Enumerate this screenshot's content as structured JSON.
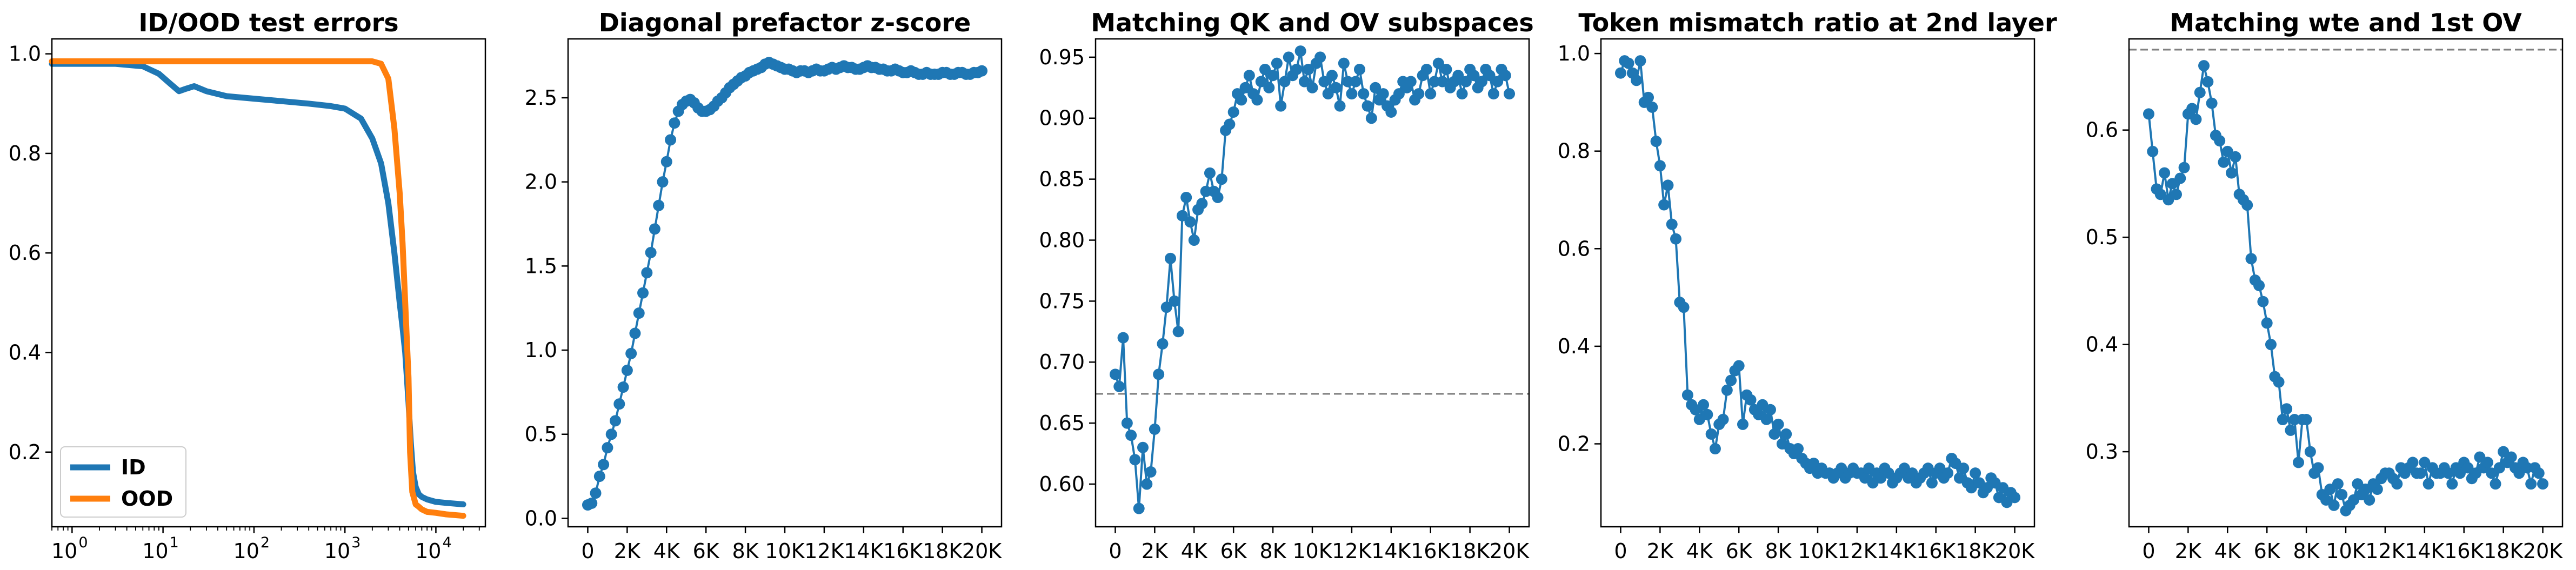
{
  "chart_data": [
    {
      "type": "line",
      "title": "ID/OOD test errors",
      "xscale": "log",
      "xlim": [
        0.6,
        35000
      ],
      "ylim": [
        0.05,
        1.03
      ],
      "xticks": [
        {
          "value": 1,
          "label": "10",
          "exp": "0"
        },
        {
          "value": 10,
          "label": "10",
          "exp": "1"
        },
        {
          "value": 100,
          "label": "10",
          "exp": "2"
        },
        {
          "value": 1000,
          "label": "10",
          "exp": "3"
        },
        {
          "value": 10000,
          "label": "10",
          "exp": "4"
        }
      ],
      "yticks": [
        {
          "value": 0.2,
          "label": "0.2"
        },
        {
          "value": 0.4,
          "label": "0.4"
        },
        {
          "value": 0.6,
          "label": "0.6"
        },
        {
          "value": 0.8,
          "label": "0.8"
        },
        {
          "value": 1.0,
          "label": "1.0"
        }
      ],
      "legend": {
        "position": "lower-left",
        "entries": [
          "ID",
          "OOD"
        ]
      },
      "series": [
        {
          "name": "ID",
          "color": "#1f77b4",
          "x": [
            0.6,
            1,
            3,
            6,
            9,
            12,
            15,
            18,
            22,
            30,
            50,
            100,
            200,
            400,
            700,
            1000,
            1500,
            2000,
            2500,
            3000,
            3500,
            4000,
            4300,
            4600,
            5000,
            5300,
            5600,
            6000,
            6500,
            7000,
            8000,
            10000,
            13000,
            20000
          ],
          "y": [
            0.98,
            0.98,
            0.98,
            0.975,
            0.96,
            0.94,
            0.925,
            0.93,
            0.935,
            0.925,
            0.915,
            0.91,
            0.905,
            0.9,
            0.895,
            0.89,
            0.87,
            0.83,
            0.78,
            0.7,
            0.6,
            0.5,
            0.45,
            0.4,
            0.3,
            0.22,
            0.16,
            0.13,
            0.115,
            0.11,
            0.105,
            0.1,
            0.098,
            0.095
          ]
        },
        {
          "name": "OOD",
          "color": "#ff7f0e",
          "x": [
            0.6,
            1,
            10,
            100,
            1000,
            2000,
            2500,
            3000,
            3500,
            4000,
            4300,
            4600,
            5000,
            5200,
            5500,
            6000,
            6500,
            7000,
            8000,
            10000,
            13000,
            20000
          ],
          "y": [
            0.985,
            0.985,
            0.985,
            0.985,
            0.985,
            0.985,
            0.98,
            0.95,
            0.85,
            0.72,
            0.62,
            0.5,
            0.35,
            0.2,
            0.12,
            0.095,
            0.09,
            0.085,
            0.08,
            0.078,
            0.075,
            0.072
          ]
        }
      ]
    },
    {
      "type": "scatter-line",
      "title": "Diagonal prefactor z-score",
      "xlim": [
        -1000,
        21000
      ],
      "ylim": [
        -0.05,
        2.85
      ],
      "xticks": [
        {
          "value": 0,
          "label": "0"
        },
        {
          "value": 2000,
          "label": "2K"
        },
        {
          "value": 4000,
          "label": "4K"
        },
        {
          "value": 6000,
          "label": "6K"
        },
        {
          "value": 8000,
          "label": "8K"
        },
        {
          "value": 10000,
          "label": "10K"
        },
        {
          "value": 12000,
          "label": "12K"
        },
        {
          "value": 14000,
          "label": "14K"
        },
        {
          "value": 16000,
          "label": "16K"
        },
        {
          "value": 18000,
          "label": "18K"
        },
        {
          "value": 20000,
          "label": "20K"
        }
      ],
      "yticks": [
        {
          "value": 0.0,
          "label": "0.0"
        },
        {
          "value": 0.5,
          "label": "0.5"
        },
        {
          "value": 1.0,
          "label": "1.0"
        },
        {
          "value": 1.5,
          "label": "1.5"
        },
        {
          "value": 2.0,
          "label": "2.0"
        },
        {
          "value": 2.5,
          "label": "2.5"
        }
      ],
      "series": [
        {
          "color": "#1f77b4",
          "markers": true,
          "x_start": 0,
          "x_step": 200,
          "y": [
            0.08,
            0.09,
            0.15,
            0.25,
            0.32,
            0.42,
            0.5,
            0.58,
            0.68,
            0.78,
            0.88,
            0.98,
            1.1,
            1.22,
            1.34,
            1.46,
            1.58,
            1.72,
            1.86,
            2.0,
            2.12,
            2.25,
            2.35,
            2.42,
            2.46,
            2.48,
            2.49,
            2.47,
            2.44,
            2.42,
            2.42,
            2.43,
            2.45,
            2.48,
            2.5,
            2.53,
            2.56,
            2.58,
            2.6,
            2.62,
            2.63,
            2.65,
            2.66,
            2.67,
            2.68,
            2.7,
            2.71,
            2.7,
            2.69,
            2.68,
            2.67,
            2.67,
            2.66,
            2.65,
            2.66,
            2.66,
            2.65,
            2.66,
            2.67,
            2.66,
            2.66,
            2.67,
            2.68,
            2.67,
            2.68,
            2.69,
            2.68,
            2.68,
            2.67,
            2.67,
            2.68,
            2.69,
            2.68,
            2.68,
            2.67,
            2.67,
            2.66,
            2.66,
            2.67,
            2.66,
            2.65,
            2.65,
            2.66,
            2.65,
            2.64,
            2.64,
            2.65,
            2.64,
            2.64,
            2.64,
            2.65,
            2.65,
            2.64,
            2.64,
            2.65,
            2.65,
            2.64,
            2.64,
            2.65,
            2.65,
            2.66
          ]
        }
      ]
    },
    {
      "type": "scatter-line",
      "title": "Matching QK and OV subspaces",
      "xlim": [
        -1000,
        21000
      ],
      "ylim": [
        0.565,
        0.965
      ],
      "xticks": [
        {
          "value": 0,
          "label": "0"
        },
        {
          "value": 2000,
          "label": "2K"
        },
        {
          "value": 4000,
          "label": "4K"
        },
        {
          "value": 6000,
          "label": "6K"
        },
        {
          "value": 8000,
          "label": "8K"
        },
        {
          "value": 10000,
          "label": "10K"
        },
        {
          "value": 12000,
          "label": "12K"
        },
        {
          "value": 14000,
          "label": "14K"
        },
        {
          "value": 16000,
          "label": "16K"
        },
        {
          "value": 18000,
          "label": "18K"
        },
        {
          "value": 20000,
          "label": "20K"
        }
      ],
      "yticks": [
        {
          "value": 0.6,
          "label": "0.60"
        },
        {
          "value": 0.65,
          "label": "0.65"
        },
        {
          "value": 0.7,
          "label": "0.70"
        },
        {
          "value": 0.75,
          "label": "0.75"
        },
        {
          "value": 0.8,
          "label": "0.80"
        },
        {
          "value": 0.85,
          "label": "0.85"
        },
        {
          "value": 0.9,
          "label": "0.90"
        },
        {
          "value": 0.95,
          "label": "0.95"
        }
      ],
      "reference_line": {
        "y": 0.674,
        "style": "dashed",
        "color": "#808080"
      },
      "series": [
        {
          "color": "#1f77b4",
          "markers": true,
          "x_start": 0,
          "x_step": 200,
          "y": [
            0.69,
            0.68,
            0.72,
            0.65,
            0.64,
            0.62,
            0.58,
            0.63,
            0.6,
            0.61,
            0.645,
            0.69,
            0.715,
            0.745,
            0.785,
            0.75,
            0.725,
            0.82,
            0.835,
            0.815,
            0.8,
            0.825,
            0.83,
            0.84,
            0.855,
            0.84,
            0.835,
            0.85,
            0.89,
            0.895,
            0.905,
            0.92,
            0.915,
            0.925,
            0.935,
            0.92,
            0.915,
            0.93,
            0.94,
            0.925,
            0.935,
            0.945,
            0.91,
            0.93,
            0.95,
            0.935,
            0.94,
            0.955,
            0.93,
            0.94,
            0.925,
            0.945,
            0.95,
            0.93,
            0.92,
            0.935,
            0.925,
            0.91,
            0.945,
            0.93,
            0.92,
            0.93,
            0.94,
            0.92,
            0.91,
            0.9,
            0.925,
            0.915,
            0.92,
            0.91,
            0.905,
            0.915,
            0.92,
            0.93,
            0.925,
            0.93,
            0.915,
            0.92,
            0.935,
            0.94,
            0.92,
            0.93,
            0.945,
            0.93,
            0.94,
            0.925,
            0.93,
            0.935,
            0.92,
            0.93,
            0.94,
            0.935,
            0.925,
            0.93,
            0.94,
            0.935,
            0.92,
            0.93,
            0.94,
            0.935,
            0.92
          ]
        }
      ]
    },
    {
      "type": "scatter-line",
      "title": "Token mismatch ratio at 2nd layer",
      "xlim": [
        -1000,
        21000
      ],
      "ylim": [
        0.03,
        1.03
      ],
      "xticks": [
        {
          "value": 0,
          "label": "0"
        },
        {
          "value": 2000,
          "label": "2K"
        },
        {
          "value": 4000,
          "label": "4K"
        },
        {
          "value": 6000,
          "label": "6K"
        },
        {
          "value": 8000,
          "label": "8K"
        },
        {
          "value": 10000,
          "label": "10K"
        },
        {
          "value": 12000,
          "label": "12K"
        },
        {
          "value": 14000,
          "label": "14K"
        },
        {
          "value": 16000,
          "label": "16K"
        },
        {
          "value": 18000,
          "label": "18K"
        },
        {
          "value": 20000,
          "label": "20K"
        }
      ],
      "yticks": [
        {
          "value": 0.2,
          "label": "0.2"
        },
        {
          "value": 0.4,
          "label": "0.4"
        },
        {
          "value": 0.6,
          "label": "0.6"
        },
        {
          "value": 0.8,
          "label": "0.8"
        },
        {
          "value": 1.0,
          "label": "1.0"
        }
      ],
      "series": [
        {
          "color": "#1f77b4",
          "markers": true,
          "x_start": 0,
          "x_step": 200,
          "y": [
            0.96,
            0.985,
            0.98,
            0.96,
            0.945,
            0.985,
            0.9,
            0.91,
            0.89,
            0.82,
            0.77,
            0.69,
            0.73,
            0.65,
            0.62,
            0.49,
            0.48,
            0.3,
            0.28,
            0.27,
            0.25,
            0.28,
            0.26,
            0.22,
            0.19,
            0.24,
            0.25,
            0.31,
            0.33,
            0.35,
            0.36,
            0.24,
            0.3,
            0.29,
            0.27,
            0.26,
            0.28,
            0.25,
            0.27,
            0.22,
            0.24,
            0.2,
            0.22,
            0.19,
            0.18,
            0.19,
            0.17,
            0.16,
            0.15,
            0.16,
            0.14,
            0.15,
            0.14,
            0.14,
            0.13,
            0.14,
            0.15,
            0.13,
            0.14,
            0.15,
            0.14,
            0.14,
            0.13,
            0.15,
            0.12,
            0.14,
            0.13,
            0.15,
            0.14,
            0.12,
            0.13,
            0.14,
            0.15,
            0.13,
            0.14,
            0.12,
            0.13,
            0.14,
            0.15,
            0.12,
            0.14,
            0.15,
            0.13,
            0.14,
            0.17,
            0.16,
            0.13,
            0.15,
            0.12,
            0.11,
            0.14,
            0.12,
            0.1,
            0.11,
            0.13,
            0.12,
            0.09,
            0.11,
            0.08,
            0.1,
            0.09
          ]
        }
      ]
    },
    {
      "type": "scatter-line",
      "title": "Matching wte and 1st OV",
      "xlim": [
        -1000,
        21000
      ],
      "ylim": [
        0.23,
        0.685
      ],
      "xticks": [
        {
          "value": 0,
          "label": "0"
        },
        {
          "value": 2000,
          "label": "2K"
        },
        {
          "value": 4000,
          "label": "4K"
        },
        {
          "value": 6000,
          "label": "6K"
        },
        {
          "value": 8000,
          "label": "8K"
        },
        {
          "value": 10000,
          "label": "10K"
        },
        {
          "value": 12000,
          "label": "12K"
        },
        {
          "value": 14000,
          "label": "14K"
        },
        {
          "value": 16000,
          "label": "16K"
        },
        {
          "value": 18000,
          "label": "18K"
        },
        {
          "value": 20000,
          "label": "20K"
        }
      ],
      "yticks": [
        {
          "value": 0.3,
          "label": "0.3"
        },
        {
          "value": 0.4,
          "label": "0.4"
        },
        {
          "value": 0.5,
          "label": "0.5"
        },
        {
          "value": 0.6,
          "label": "0.6"
        }
      ],
      "reference_line": {
        "y": 0.675,
        "style": "dashed",
        "color": "#808080"
      },
      "series": [
        {
          "color": "#1f77b4",
          "markers": true,
          "x_start": 0,
          "x_step": 200,
          "y": [
            0.615,
            0.58,
            0.545,
            0.54,
            0.56,
            0.535,
            0.55,
            0.54,
            0.555,
            0.565,
            0.615,
            0.62,
            0.61,
            0.635,
            0.66,
            0.645,
            0.625,
            0.595,
            0.59,
            0.57,
            0.58,
            0.56,
            0.575,
            0.54,
            0.535,
            0.53,
            0.48,
            0.46,
            0.455,
            0.44,
            0.42,
            0.4,
            0.37,
            0.365,
            0.33,
            0.34,
            0.32,
            0.33,
            0.29,
            0.33,
            0.33,
            0.3,
            0.28,
            0.285,
            0.26,
            0.255,
            0.265,
            0.25,
            0.27,
            0.26,
            0.245,
            0.25,
            0.255,
            0.27,
            0.26,
            0.265,
            0.255,
            0.27,
            0.265,
            0.275,
            0.28,
            0.28,
            0.275,
            0.27,
            0.285,
            0.28,
            0.285,
            0.29,
            0.28,
            0.28,
            0.29,
            0.27,
            0.285,
            0.28,
            0.28,
            0.285,
            0.28,
            0.27,
            0.285,
            0.28,
            0.29,
            0.285,
            0.275,
            0.28,
            0.295,
            0.285,
            0.29,
            0.28,
            0.27,
            0.285,
            0.3,
            0.29,
            0.295,
            0.285,
            0.28,
            0.29,
            0.285,
            0.27,
            0.285,
            0.28,
            0.27
          ]
        }
      ]
    }
  ]
}
